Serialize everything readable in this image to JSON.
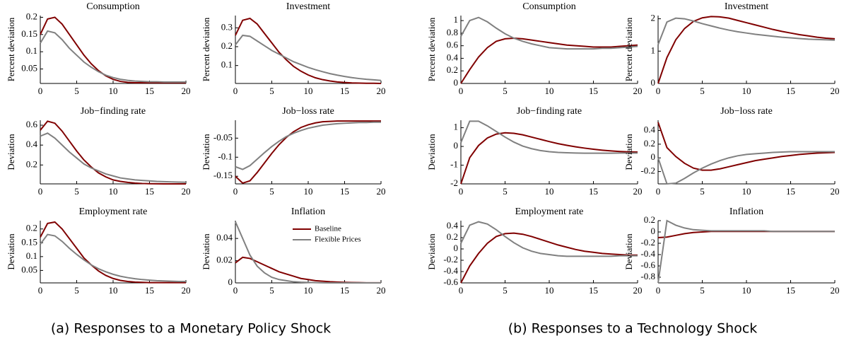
{
  "captions": [
    "(a)  Responses to a Monetary Policy Shock",
    "(b)  Responses to a Technology Shock"
  ],
  "chart_data": [
    {
      "type": "line",
      "title": "Consumption",
      "y_label": "Percent deviation",
      "x": [
        0,
        1,
        2,
        3,
        4,
        5,
        6,
        7,
        8,
        9,
        10,
        11,
        12,
        13,
        14,
        15,
        16,
        17,
        18,
        19,
        20
      ],
      "xlim": [
        0,
        20
      ],
      "xticks": [
        0,
        5,
        10,
        15,
        20
      ],
      "ylim": [
        0.008,
        0.205
      ],
      "yticks": [
        0.05,
        0.1,
        0.15,
        0.2
      ],
      "series": [
        {
          "color": "#800000",
          "values": [
            0.15,
            0.195,
            0.2,
            0.18,
            0.15,
            0.12,
            0.09,
            0.065,
            0.045,
            0.03,
            0.02,
            0.014,
            0.011,
            0.01,
            0.01,
            0.01,
            0.01,
            0.01,
            0.01,
            0.01,
            0.01
          ]
        },
        {
          "color": "#808080",
          "values": [
            0.125,
            0.16,
            0.155,
            0.135,
            0.11,
            0.09,
            0.07,
            0.055,
            0.042,
            0.032,
            0.025,
            0.02,
            0.017,
            0.015,
            0.014,
            0.013,
            0.013,
            0.012,
            0.012,
            0.012,
            0.012
          ]
        }
      ]
    },
    {
      "type": "line",
      "title": "Investment",
      "y_label": "Percent deviation",
      "x": [
        0,
        1,
        2,
        3,
        4,
        5,
        6,
        7,
        8,
        9,
        10,
        11,
        12,
        13,
        14,
        15,
        16,
        17,
        18,
        19,
        20
      ],
      "xlim": [
        0,
        20
      ],
      "xticks": [
        0,
        5,
        10,
        15,
        20
      ],
      "ylim": [
        0.005,
        0.365
      ],
      "yticks": [
        0.1,
        0.2,
        0.3
      ],
      "series": [
        {
          "color": "#800000",
          "values": [
            0.26,
            0.34,
            0.35,
            0.32,
            0.27,
            0.22,
            0.17,
            0.13,
            0.095,
            0.07,
            0.05,
            0.035,
            0.025,
            0.018,
            0.013,
            0.01,
            0.008,
            0.007,
            0.006,
            0.006,
            0.005
          ]
        },
        {
          "color": "#808080",
          "values": [
            0.21,
            0.26,
            0.255,
            0.23,
            0.205,
            0.18,
            0.16,
            0.14,
            0.12,
            0.105,
            0.09,
            0.078,
            0.067,
            0.057,
            0.049,
            0.042,
            0.036,
            0.031,
            0.027,
            0.024,
            0.021
          ]
        }
      ]
    },
    {
      "type": "line",
      "title": "Job−finding rate",
      "y_label": "Deviation",
      "x": [
        0,
        1,
        2,
        3,
        4,
        5,
        6,
        7,
        8,
        9,
        10,
        11,
        12,
        13,
        14,
        15,
        16,
        17,
        18,
        19,
        20
      ],
      "xlim": [
        0,
        20
      ],
      "xticks": [
        0,
        5,
        10,
        15,
        20
      ],
      "ylim": [
        0.01,
        0.65
      ],
      "yticks": [
        0.2,
        0.4,
        0.6
      ],
      "series": [
        {
          "color": "#800000",
          "values": [
            0.55,
            0.64,
            0.62,
            0.54,
            0.44,
            0.34,
            0.25,
            0.18,
            0.12,
            0.08,
            0.05,
            0.035,
            0.025,
            0.018,
            0.014,
            0.012,
            0.011,
            0.01,
            0.01,
            0.01,
            0.01
          ]
        },
        {
          "color": "#808080",
          "values": [
            0.49,
            0.52,
            0.47,
            0.4,
            0.33,
            0.27,
            0.21,
            0.17,
            0.14,
            0.11,
            0.09,
            0.07,
            0.06,
            0.05,
            0.045,
            0.04,
            0.035,
            0.032,
            0.03,
            0.028,
            0.026
          ]
        }
      ]
    },
    {
      "type": "line",
      "title": "Job−loss rate",
      "y_label": "Deviation",
      "x": [
        0,
        1,
        2,
        3,
        4,
        5,
        6,
        7,
        8,
        9,
        10,
        11,
        12,
        13,
        14,
        15,
        16,
        17,
        18,
        19,
        20
      ],
      "xlim": [
        0,
        20
      ],
      "xticks": [
        0,
        5,
        10,
        15,
        20
      ],
      "ylim": [
        -0.17,
        -0.003
      ],
      "yticks": [
        -0.15,
        -0.1,
        -0.05
      ],
      "series": [
        {
          "color": "#800000",
          "values": [
            -0.15,
            -0.168,
            -0.162,
            -0.14,
            -0.115,
            -0.09,
            -0.067,
            -0.048,
            -0.033,
            -0.022,
            -0.015,
            -0.01,
            -0.007,
            -0.006,
            -0.005,
            -0.005,
            -0.005,
            -0.005,
            -0.005,
            -0.005,
            -0.005
          ]
        },
        {
          "color": "#808080",
          "values": [
            -0.125,
            -0.132,
            -0.122,
            -0.105,
            -0.088,
            -0.072,
            -0.058,
            -0.046,
            -0.037,
            -0.03,
            -0.024,
            -0.02,
            -0.016,
            -0.014,
            -0.012,
            -0.011,
            -0.01,
            -0.009,
            -0.009,
            -0.008,
            -0.008
          ]
        }
      ]
    },
    {
      "type": "line",
      "title": "Employment rate",
      "y_label": "Deviation",
      "x": [
        0,
        1,
        2,
        3,
        4,
        5,
        6,
        7,
        8,
        9,
        10,
        11,
        12,
        13,
        14,
        15,
        16,
        17,
        18,
        19,
        20
      ],
      "xlim": [
        0,
        20
      ],
      "xticks": [
        0,
        5,
        10,
        15,
        20
      ],
      "ylim": [
        0.005,
        0.23
      ],
      "yticks": [
        0.05,
        0.1,
        0.15,
        0.2
      ],
      "series": [
        {
          "color": "#800000",
          "values": [
            0.17,
            0.22,
            0.225,
            0.2,
            0.165,
            0.13,
            0.095,
            0.07,
            0.048,
            0.032,
            0.021,
            0.014,
            0.01,
            0.008,
            0.007,
            0.006,
            0.006,
            0.006,
            0.006,
            0.006,
            0.006
          ]
        },
        {
          "color": "#808080",
          "values": [
            0.145,
            0.18,
            0.175,
            0.155,
            0.13,
            0.108,
            0.088,
            0.07,
            0.056,
            0.045,
            0.036,
            0.029,
            0.024,
            0.02,
            0.017,
            0.015,
            0.013,
            0.012,
            0.011,
            0.01,
            0.01
          ]
        }
      ]
    },
    {
      "type": "line",
      "title": "Inflation",
      "y_label": "Deviation",
      "legend": "upper right",
      "x": [
        0,
        1,
        2,
        3,
        4,
        5,
        6,
        7,
        8,
        9,
        10,
        11,
        12,
        13,
        14,
        15,
        16,
        17,
        18,
        19,
        20
      ],
      "xlim": [
        0,
        20
      ],
      "xticks": [
        0,
        5,
        10,
        15,
        20
      ],
      "ylim": [
        0,
        0.056
      ],
      "yticks": [
        0,
        0.02,
        0.04
      ],
      "series": [
        {
          "name": "Baseline",
          "color": "#800000",
          "values": [
            0.018,
            0.023,
            0.022,
            0.019,
            0.016,
            0.013,
            0.01,
            0.008,
            0.006,
            0.004,
            0.003,
            0.002,
            0.0015,
            0.001,
            0.0007,
            0.0005,
            0.0003,
            0.0002,
            0.0001,
            0.0001,
            0.0001
          ]
        },
        {
          "name": "Flexible Prices",
          "color": "#808080",
          "values": [
            0.055,
            0.04,
            0.025,
            0.015,
            0.009,
            0.005,
            0.003,
            0.002,
            0.001,
            0.0006,
            0.0004,
            0.0002,
            0.0001,
            0,
            0,
            0,
            0,
            0,
            0,
            0,
            0
          ]
        }
      ]
    },
    {
      "type": "line",
      "title": "Consumption",
      "y_label": "Percent deviation",
      "x": [
        0,
        1,
        2,
        3,
        4,
        5,
        6,
        7,
        8,
        9,
        10,
        11,
        12,
        13,
        14,
        15,
        16,
        17,
        18,
        19,
        20
      ],
      "xlim": [
        0,
        20
      ],
      "xticks": [
        0,
        5,
        10,
        15,
        20
      ],
      "ylim": [
        0,
        1.08
      ],
      "yticks": [
        0,
        0.2,
        0.4,
        0.6,
        0.8,
        1
      ],
      "series": [
        {
          "color": "#800000",
          "values": [
            0,
            0.22,
            0.42,
            0.57,
            0.67,
            0.71,
            0.72,
            0.71,
            0.69,
            0.67,
            0.65,
            0.63,
            0.61,
            0.6,
            0.59,
            0.58,
            0.58,
            0.58,
            0.59,
            0.6,
            0.61
          ]
        },
        {
          "color": "#808080",
          "values": [
            0.75,
            1.0,
            1.05,
            0.98,
            0.88,
            0.79,
            0.72,
            0.67,
            0.63,
            0.6,
            0.57,
            0.56,
            0.55,
            0.55,
            0.55,
            0.55,
            0.56,
            0.56,
            0.57,
            0.58,
            0.59
          ]
        }
      ]
    },
    {
      "type": "line",
      "title": "Investment",
      "y_label": "Percent deviation",
      "x": [
        0,
        1,
        2,
        3,
        4,
        5,
        6,
        7,
        8,
        9,
        10,
        11,
        12,
        13,
        14,
        15,
        16,
        17,
        18,
        19,
        20
      ],
      "xlim": [
        0,
        20
      ],
      "xticks": [
        0,
        5,
        10,
        15,
        20
      ],
      "ylim": [
        0,
        2.1
      ],
      "yticks": [
        0,
        1,
        2
      ],
      "series": [
        {
          "color": "#800000",
          "values": [
            0,
            0.8,
            1.35,
            1.7,
            1.92,
            2.03,
            2.07,
            2.06,
            2.02,
            1.95,
            1.88,
            1.81,
            1.74,
            1.67,
            1.61,
            1.56,
            1.51,
            1.47,
            1.43,
            1.4,
            1.38
          ]
        },
        {
          "color": "#808080",
          "values": [
            1.2,
            1.9,
            2.02,
            2.0,
            1.93,
            1.85,
            1.78,
            1.71,
            1.65,
            1.6,
            1.56,
            1.52,
            1.49,
            1.46,
            1.43,
            1.41,
            1.39,
            1.37,
            1.36,
            1.35,
            1.34
          ]
        }
      ]
    },
    {
      "type": "line",
      "title": "Job−finding rate",
      "y_label": "Deviation",
      "x": [
        0,
        1,
        2,
        3,
        4,
        5,
        6,
        7,
        8,
        9,
        10,
        11,
        12,
        13,
        14,
        15,
        16,
        17,
        18,
        19,
        20
      ],
      "xlim": [
        0,
        20
      ],
      "xticks": [
        0,
        5,
        10,
        15,
        20
      ],
      "ylim": [
        -2,
        1.4
      ],
      "yticks": [
        -2,
        -1,
        0,
        1
      ],
      "series": [
        {
          "color": "#800000",
          "values": [
            -2,
            -0.6,
            0.05,
            0.45,
            0.66,
            0.73,
            0.7,
            0.62,
            0.5,
            0.38,
            0.26,
            0.15,
            0.06,
            -0.02,
            -0.09,
            -0.15,
            -0.2,
            -0.24,
            -0.27,
            -0.29,
            -0.3
          ]
        },
        {
          "color": "#808080",
          "values": [
            0.2,
            1.35,
            1.35,
            1.1,
            0.8,
            0.5,
            0.23,
            0.02,
            -0.12,
            -0.22,
            -0.28,
            -0.32,
            -0.34,
            -0.35,
            -0.36,
            -0.36,
            -0.36,
            -0.36,
            -0.35,
            -0.35,
            -0.35
          ]
        }
      ]
    },
    {
      "type": "line",
      "title": "Job−loss rate",
      "y_label": "Deviation",
      "x": [
        0,
        1,
        2,
        3,
        4,
        5,
        6,
        7,
        8,
        9,
        10,
        11,
        12,
        13,
        14,
        15,
        16,
        17,
        18,
        19,
        20
      ],
      "xlim": [
        0,
        20
      ],
      "xticks": [
        0,
        5,
        10,
        15,
        20
      ],
      "ylim": [
        -0.38,
        0.55
      ],
      "yticks": [
        -0.2,
        0,
        0.2,
        0.4
      ],
      "series": [
        {
          "color": "#800000",
          "values": [
            0.52,
            0.15,
            0.02,
            -0.08,
            -0.15,
            -0.18,
            -0.18,
            -0.16,
            -0.13,
            -0.1,
            -0.07,
            -0.04,
            -0.02,
            0,
            0.02,
            0.035,
            0.05,
            0.06,
            0.07,
            0.075,
            0.08
          ]
        },
        {
          "color": "#808080",
          "values": [
            0,
            -0.38,
            -0.37,
            -0.3,
            -0.22,
            -0.15,
            -0.09,
            -0.04,
            0,
            0.03,
            0.05,
            0.06,
            0.07,
            0.08,
            0.085,
            0.09,
            0.09,
            0.09,
            0.09,
            0.09,
            0.09
          ]
        }
      ]
    },
    {
      "type": "line",
      "title": "Employment rate",
      "y_label": "Deviation",
      "x": [
        0,
        1,
        2,
        3,
        4,
        5,
        6,
        7,
        8,
        9,
        10,
        11,
        12,
        13,
        14,
        15,
        16,
        17,
        18,
        19,
        20
      ],
      "xlim": [
        0,
        20
      ],
      "xticks": [
        0,
        5,
        10,
        15,
        20
      ],
      "ylim": [
        -0.6,
        0.5
      ],
      "yticks": [
        -0.6,
        -0.4,
        -0.2,
        0,
        0.2,
        0.4
      ],
      "series": [
        {
          "color": "#800000",
          "values": [
            -0.6,
            -0.3,
            -0.08,
            0.1,
            0.22,
            0.27,
            0.28,
            0.26,
            0.22,
            0.17,
            0.12,
            0.07,
            0.03,
            -0.01,
            -0.04,
            -0.06,
            -0.08,
            -0.09,
            -0.1,
            -0.11,
            -0.11
          ]
        },
        {
          "color": "#808080",
          "values": [
            0.1,
            0.42,
            0.48,
            0.44,
            0.34,
            0.22,
            0.11,
            0.02,
            -0.04,
            -0.08,
            -0.1,
            -0.12,
            -0.13,
            -0.13,
            -0.13,
            -0.13,
            -0.13,
            -0.13,
            -0.12,
            -0.12,
            -0.12
          ]
        }
      ]
    },
    {
      "type": "line",
      "title": "Inflation",
      "y_label": "Deviation",
      "x": [
        0,
        1,
        2,
        3,
        4,
        5,
        6,
        7,
        8,
        9,
        10,
        11,
        12,
        13,
        14,
        15,
        16,
        17,
        18,
        19,
        20
      ],
      "xlim": [
        0,
        20
      ],
      "xticks": [
        0,
        5,
        10,
        15,
        20
      ],
      "ylim": [
        -0.9,
        0.2
      ],
      "yticks": [
        -0.8,
        -0.6,
        -0.4,
        -0.2,
        0,
        0.2
      ],
      "series": [
        {
          "color": "#800000",
          "values": [
            -0.1,
            -0.09,
            -0.06,
            -0.03,
            -0.01,
            0,
            0.01,
            0.01,
            0.01,
            0.01,
            0.01,
            0.01,
            0.01,
            0.01,
            0.01,
            0.01,
            0.01,
            0.01,
            0.01,
            0.01,
            0.01
          ]
        },
        {
          "color": "#808080",
          "values": [
            -0.9,
            0.2,
            0.12,
            0.07,
            0.04,
            0.03,
            0.02,
            0.02,
            0.02,
            0.02,
            0.02,
            0.02,
            0.02,
            0.01,
            0.01,
            0.01,
            0.01,
            0.01,
            0.01,
            0.01,
            0.01
          ]
        }
      ]
    }
  ]
}
